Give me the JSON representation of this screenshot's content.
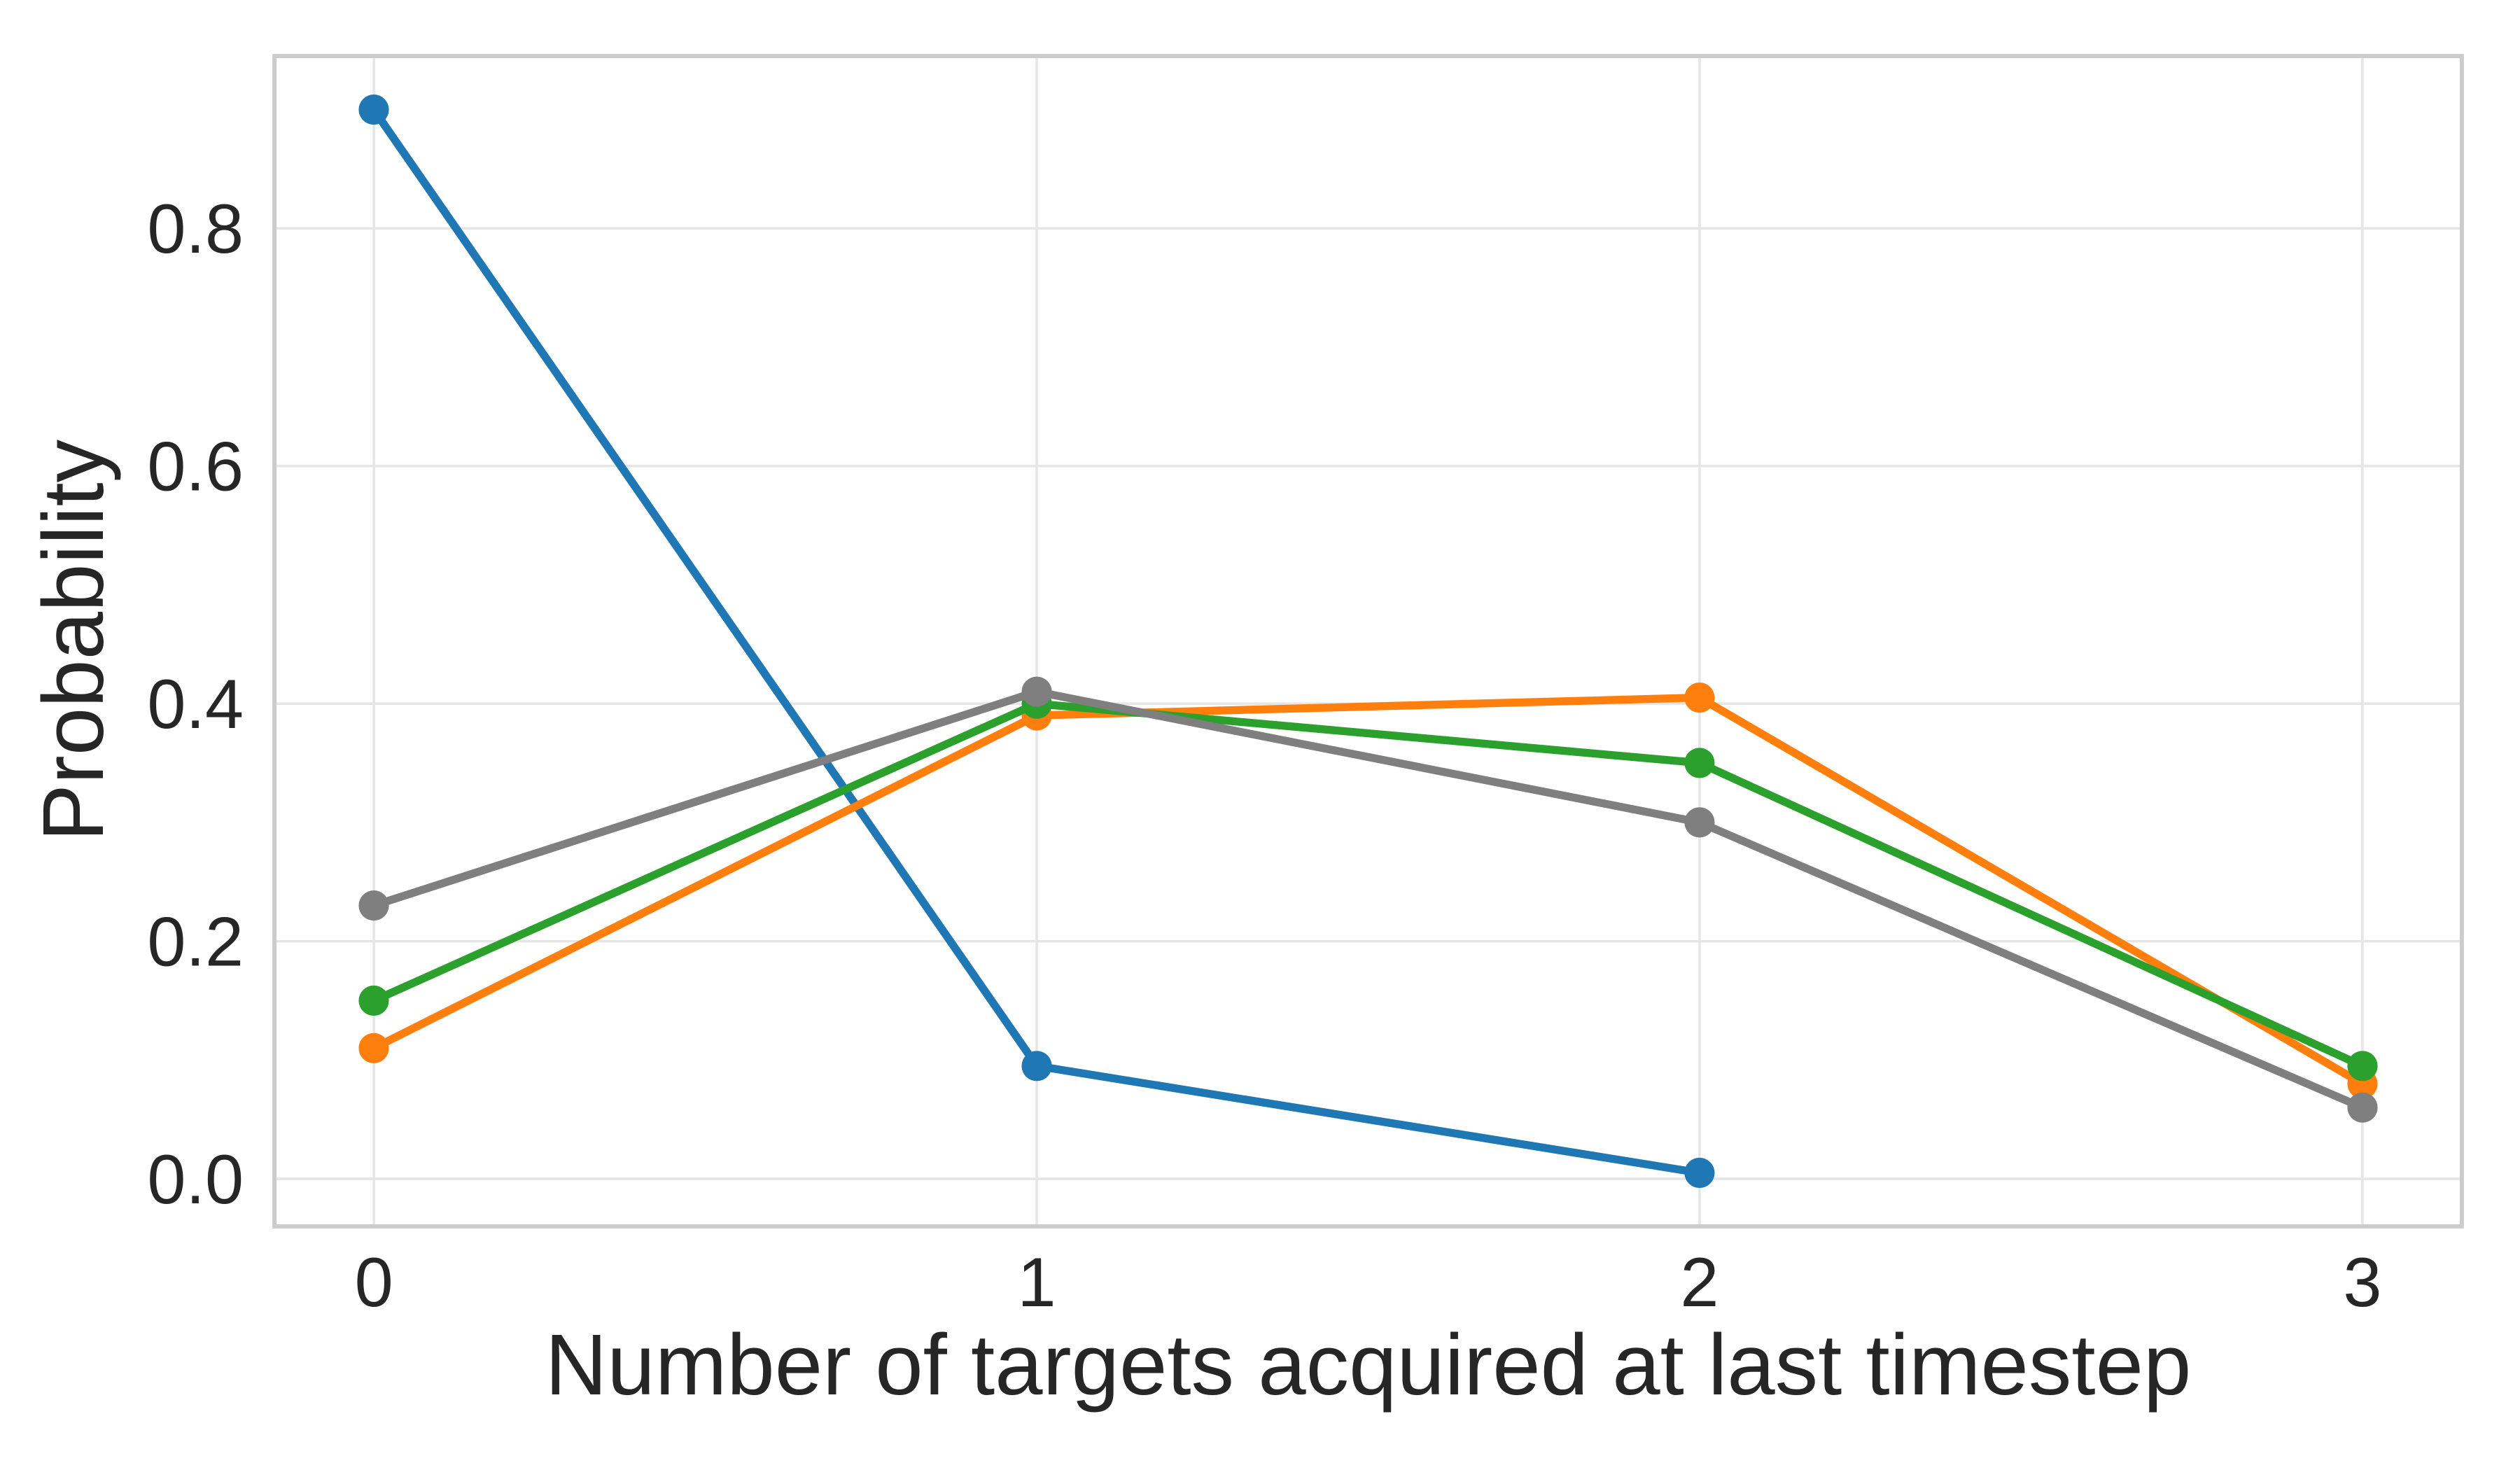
{
  "figure": {
    "background": "#ffffff",
    "text_color": "#262626",
    "grid_color": "#e6e6e6",
    "spine_color": "#cccccc"
  },
  "chart_data": {
    "type": "line",
    "title": "",
    "xlabel": "Number of targets acquired at last timestep",
    "ylabel": "Probability",
    "x_tick_values": [
      0,
      1,
      2,
      3
    ],
    "x_tick_labels": [
      "0",
      "1",
      "2",
      "3"
    ],
    "y_tick_values": [
      0.0,
      0.2,
      0.4,
      0.6,
      0.8
    ],
    "y_tick_labels": [
      "0.0",
      "0.2",
      "0.4",
      "0.6",
      "0.8"
    ],
    "xlim": [
      -0.15,
      3.15
    ],
    "ylim": [
      -0.04,
      0.945
    ],
    "grid": true,
    "legend": "none",
    "marker": "circle",
    "series": [
      {
        "name": "blue",
        "color": "#1f77b4",
        "x": [
          0,
          1,
          2
        ],
        "y": [
          0.9,
          0.095,
          0.005
        ]
      },
      {
        "name": "orange",
        "color": "#ff7f0e",
        "x": [
          0,
          1,
          2,
          3
        ],
        "y": [
          0.11,
          0.39,
          0.405,
          0.08
        ]
      },
      {
        "name": "green",
        "color": "#2ca02c",
        "x": [
          0,
          1,
          2,
          3
        ],
        "y": [
          0.15,
          0.4,
          0.35,
          0.095
        ]
      },
      {
        "name": "gray",
        "color": "#7f7f7f",
        "x": [
          0,
          1,
          2,
          3
        ],
        "y": [
          0.23,
          0.41,
          0.3,
          0.06
        ]
      }
    ]
  }
}
